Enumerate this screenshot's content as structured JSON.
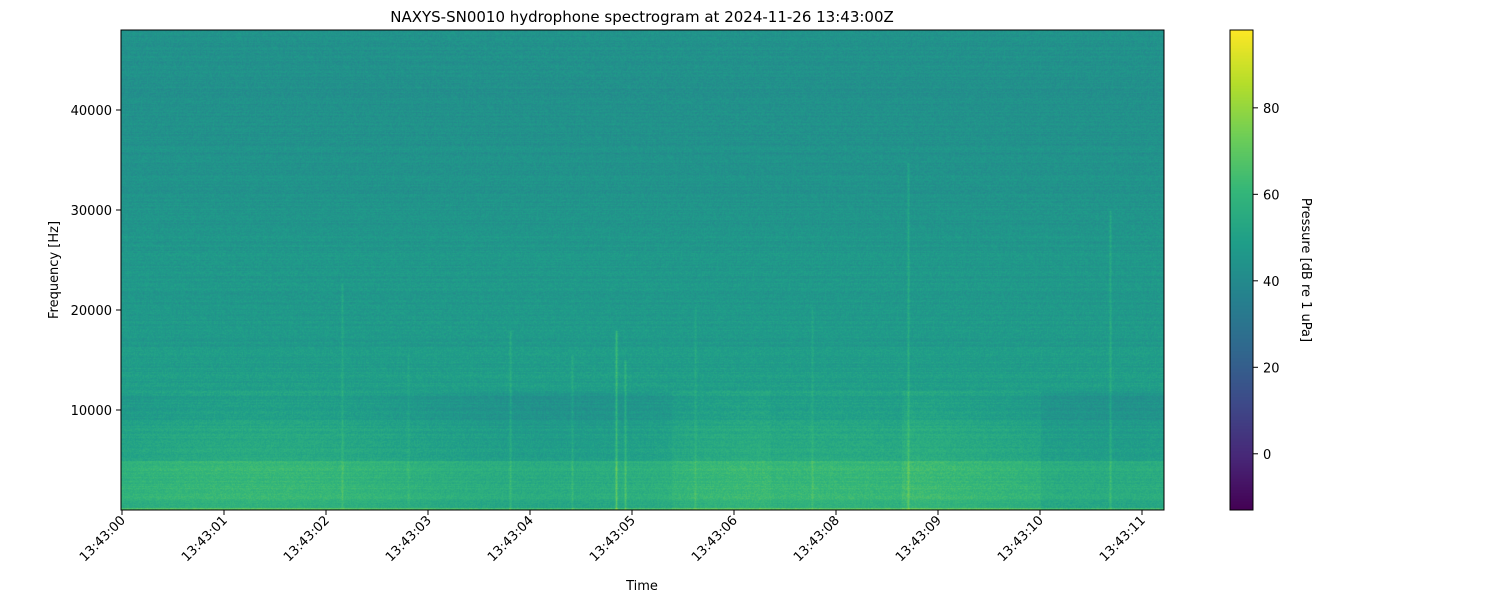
{
  "chart_data": {
    "type": "heatmap",
    "title": "NAXYS-SN0010 hydrophone spectrogram at 2024-11-26 13:43:00Z",
    "xlabel": "Time",
    "ylabel": "Frequency [Hz]",
    "x_tick_labels": [
      "13:43:00",
      "13:43:01",
      "13:43:02",
      "13:43:03",
      "13:43:04",
      "13:43:05",
      "13:43:06",
      "13:43:08",
      "13:43:09",
      "13:43:10",
      "13:43:11"
    ],
    "y_ticks": [
      10000,
      20000,
      30000,
      40000
    ],
    "ylim": [
      0,
      48000
    ],
    "colormap": "viridis",
    "colorbar": {
      "label": "Pressure [dB re 1 uPa]",
      "ticks": [
        0,
        20,
        40,
        60,
        80
      ],
      "clim": [
        -13,
        98
      ]
    },
    "grid": false
  }
}
